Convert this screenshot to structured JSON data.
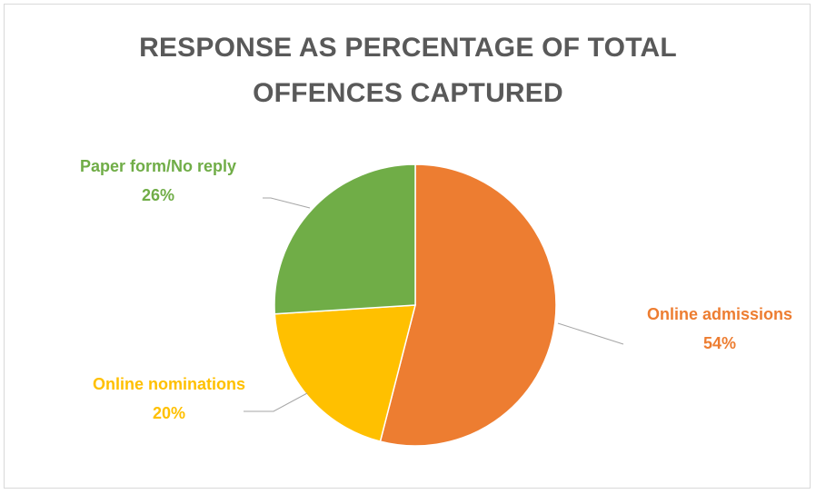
{
  "chart_data": {
    "type": "pie",
    "title": "RESPONSE AS PERCENTAGE OF TOTAL OFFENCES CAPTURED",
    "title_lines": [
      "RESPONSE AS PERCENTAGE OF TOTAL",
      "OFFENCES CAPTURED"
    ],
    "slices": [
      {
        "name": "Online admissions",
        "value": 54,
        "label": "54%",
        "color": "#ED7D31"
      },
      {
        "name": "Online nominations",
        "value": 20,
        "label": "20%",
        "color": "#FFC000"
      },
      {
        "name": "Paper form/No reply",
        "value": 26,
        "label": "26%",
        "color": "#70AD47"
      }
    ],
    "start_angle": "12 o'clock",
    "direction": "clockwise",
    "legend": "none",
    "data_labels": "outside with leader lines"
  },
  "colors": {
    "title": "#595959",
    "leader_line": "#a6a6a6",
    "border": "#d9d9d9"
  }
}
